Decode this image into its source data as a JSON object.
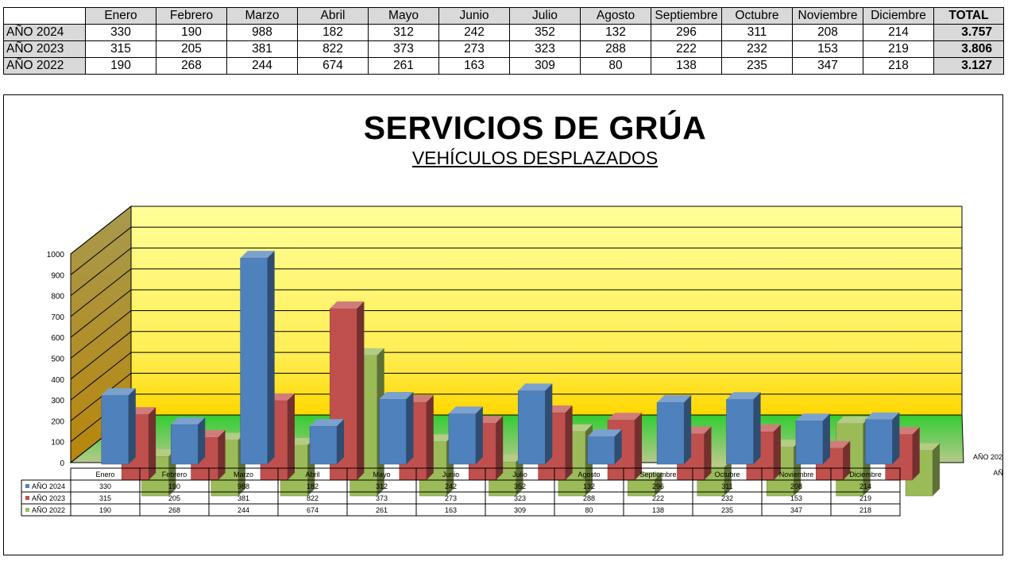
{
  "summary_table": {
    "corner": "",
    "months": [
      "Enero",
      "Febrero",
      "Marzo",
      "Abril",
      "Mayo",
      "Junio",
      "Julio",
      "Agosto",
      "Septiembre",
      "Octubre",
      "Noviembre",
      "Diciembre"
    ],
    "total_label": "TOTAL",
    "rows": [
      {
        "label": "AÑO 2024",
        "values": [
          "330",
          "190",
          "988",
          "182",
          "312",
          "242",
          "352",
          "132",
          "296",
          "311",
          "208",
          "214"
        ],
        "total": "3.757"
      },
      {
        "label": "AÑO 2023",
        "values": [
          "315",
          "205",
          "381",
          "822",
          "373",
          "273",
          "323",
          "288",
          "222",
          "232",
          "153",
          "219"
        ],
        "total": "3.806"
      },
      {
        "label": "AÑO 2022",
        "values": [
          "190",
          "268",
          "244",
          "674",
          "261",
          "163",
          "309",
          "80",
          "138",
          "235",
          "347",
          "218"
        ],
        "total": "3.127"
      }
    ]
  },
  "chart_data": {
    "type": "bar",
    "title": "SERVICIOS DE GRÚA",
    "subtitle": "VEHÍCULOS DESPLAZADOS",
    "categories": [
      "Enero",
      "Febrero",
      "Marzo",
      "Abril",
      "Mayo",
      "Junio",
      "Julio",
      "Agosto",
      "Septiembre",
      "Octubre",
      "Noviembre",
      "Diciembre"
    ],
    "series": [
      {
        "name": "AÑO 2024",
        "color": "#4f81bd",
        "values": [
          330,
          190,
          988,
          182,
          312,
          242,
          352,
          132,
          296,
          311,
          208,
          214
        ]
      },
      {
        "name": "AÑO 2023",
        "color": "#c0504d",
        "values": [
          315,
          205,
          381,
          822,
          373,
          273,
          323,
          288,
          222,
          232,
          153,
          219
        ]
      },
      {
        "name": "AÑO 2022",
        "color": "#9bbb59",
        "values": [
          190,
          268,
          244,
          674,
          261,
          163,
          309,
          80,
          138,
          235,
          347,
          218
        ]
      }
    ],
    "ylim": [
      0,
      1000
    ],
    "yticks": [
      0,
      100,
      200,
      300,
      400,
      500,
      600,
      700,
      800,
      900,
      1000
    ],
    "grid": true,
    "style": "3d-column",
    "data_table": true,
    "colors": {
      "wall_top": "#ffff99",
      "wall_bottom": "#ffd700",
      "floor": "#33cc33",
      "side_wall": "#a89a4f"
    }
  }
}
